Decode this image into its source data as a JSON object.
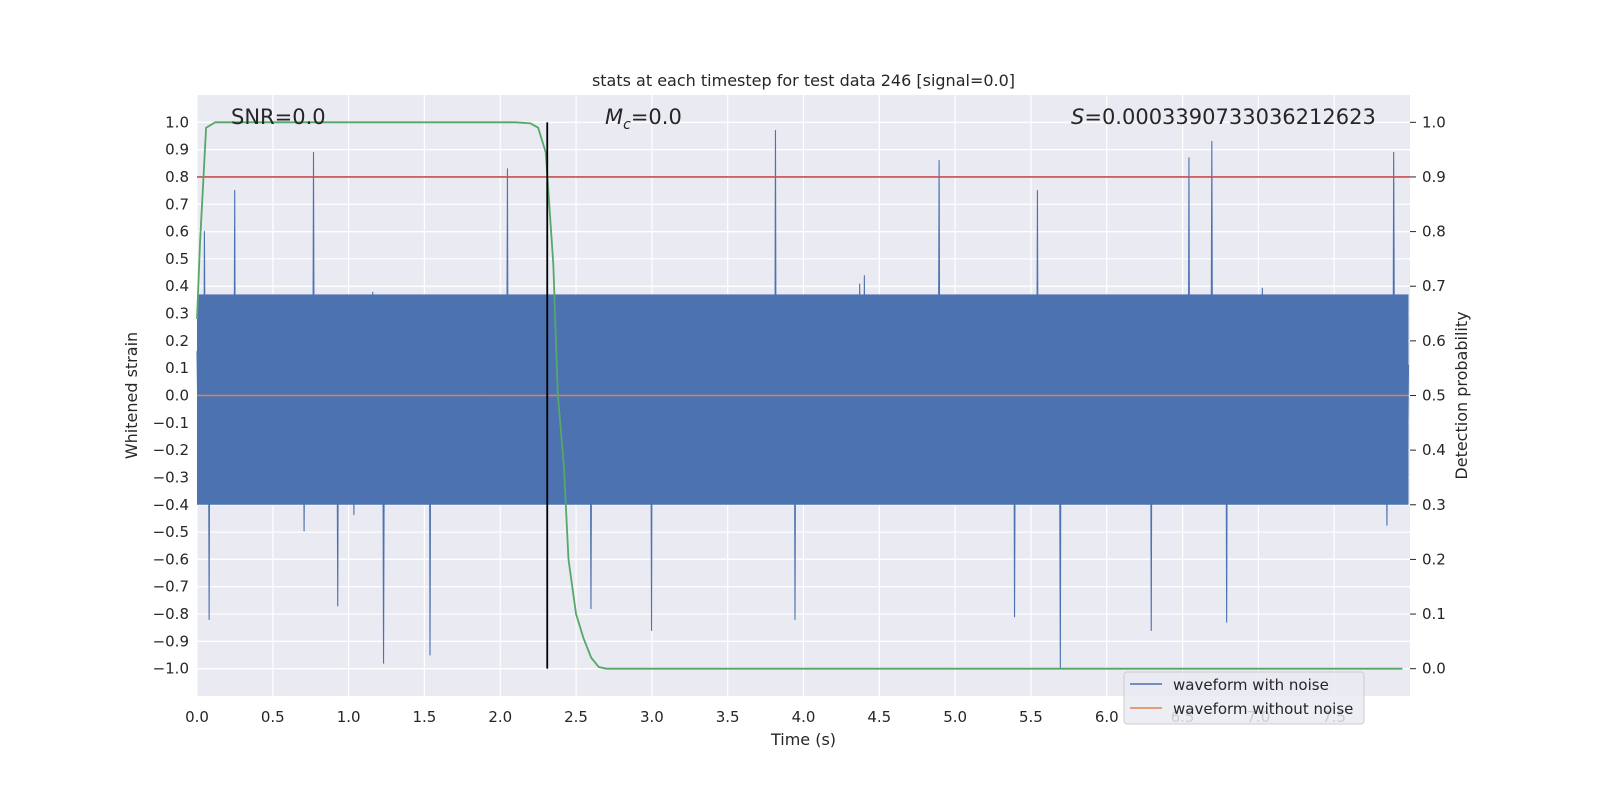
{
  "chart_data": {
    "type": "line",
    "title": "stats at each timestep for test data 246 [signal=0.0]",
    "xlabel": "Time (s)",
    "ylabel_left": "Whitened strain",
    "ylabel_right": "Detection probability",
    "xlim": [
      0.0,
      8.0
    ],
    "ylim_left": [
      -1.1,
      1.1
    ],
    "ylim_right": [
      -0.05,
      1.05
    ],
    "grid": true,
    "x_ticks": [
      "0.0",
      "0.5",
      "1.0",
      "1.5",
      "2.0",
      "2.5",
      "3.0",
      "3.5",
      "4.0",
      "4.5",
      "5.0",
      "5.5",
      "6.0",
      "6.5",
      "7.0",
      "7.5"
    ],
    "y_left_ticks": [
      "1.0",
      "0.9",
      "0.8",
      "0.7",
      "0.6",
      "0.5",
      "0.4",
      "0.3",
      "0.2",
      "0.1",
      "0.0",
      "−0.1",
      "−0.2",
      "−0.3",
      "−0.4",
      "−0.5",
      "−0.6",
      "−0.7",
      "−0.8",
      "−0.9",
      "−1.0"
    ],
    "y_right_ticks": [
      "1.0",
      "0.9",
      "0.8",
      "0.7",
      "0.6",
      "0.5",
      "0.4",
      "0.3",
      "0.2",
      "0.1",
      "0.0"
    ],
    "annotations": {
      "snr": "SNR=0.0",
      "mc_symbol": "M",
      "mc_sub": "c",
      "mc_value": "=0.0",
      "s_symbol": "S",
      "s_value": "=0.000339073303621262​3"
    },
    "series": [
      {
        "name": "waveform with noise",
        "color": "#4c72b0",
        "axis": "left",
        "description": "dense noisy strain, roughly uniform band",
        "typical_range": [
          -0.4,
          0.37
        ],
        "peaks": [
          {
            "x": 0.05,
            "y": 0.6
          },
          {
            "x": 0.25,
            "y": 0.75
          },
          {
            "x": 0.77,
            "y": 0.89
          },
          {
            "x": 2.05,
            "y": 0.83
          },
          {
            "x": 3.82,
            "y": 0.97
          },
          {
            "x": 4.9,
            "y": 0.86
          },
          {
            "x": 5.55,
            "y": 0.75
          },
          {
            "x": 6.55,
            "y": 0.87
          },
          {
            "x": 6.7,
            "y": 0.93
          },
          {
            "x": 7.9,
            "y": 0.89
          }
        ],
        "troughs": [
          {
            "x": 0.08,
            "y": -0.82
          },
          {
            "x": 0.93,
            "y": -0.77
          },
          {
            "x": 1.23,
            "y": -0.98
          },
          {
            "x": 1.54,
            "y": -0.95
          },
          {
            "x": 2.6,
            "y": -0.78
          },
          {
            "x": 3.0,
            "y": -0.86
          },
          {
            "x": 3.95,
            "y": -0.82
          },
          {
            "x": 5.4,
            "y": -0.81
          },
          {
            "x": 5.7,
            "y": -1.0
          },
          {
            "x": 6.3,
            "y": -0.86
          },
          {
            "x": 6.8,
            "y": -0.83
          }
        ]
      },
      {
        "name": "waveform without noise",
        "color": "#dd8452",
        "axis": "left",
        "x": [
          0.0,
          8.0
        ],
        "values": [
          0.0,
          0.0
        ]
      },
      {
        "name": "detection probability",
        "color": "#55a868",
        "axis": "right",
        "x": [
          0.0,
          0.02,
          0.06,
          0.12,
          0.2,
          0.5,
          1.0,
          1.5,
          2.0,
          2.1,
          2.2,
          2.25,
          2.3,
          2.35,
          2.38,
          2.42,
          2.45,
          2.5,
          2.55,
          2.6,
          2.65,
          2.7,
          3.0,
          4.0,
          5.0,
          6.0,
          7.0,
          7.95
        ],
        "values": [
          0.64,
          0.78,
          0.99,
          1.0,
          1.0,
          1.0,
          1.0,
          1.0,
          1.0,
          1.0,
          0.998,
          0.99,
          0.945,
          0.74,
          0.5,
          0.37,
          0.2,
          0.1,
          0.055,
          0.02,
          0.003,
          0.0,
          0.0,
          0.0,
          0.0,
          0.0,
          0.0,
          0.0
        ]
      }
    ],
    "reference_lines": [
      {
        "name": "threshold",
        "orientation": "horizontal",
        "axis": "right",
        "value": 0.9,
        "color": "#c44e52"
      },
      {
        "name": "marker",
        "orientation": "vertical",
        "value": 2.31,
        "color": "#000000"
      }
    ],
    "legend": {
      "position": "bottom-right",
      "entries": [
        {
          "label": "waveform with noise",
          "color": "#4c72b0"
        },
        {
          "label": "waveform without noise",
          "color": "#dd8452"
        }
      ]
    }
  }
}
